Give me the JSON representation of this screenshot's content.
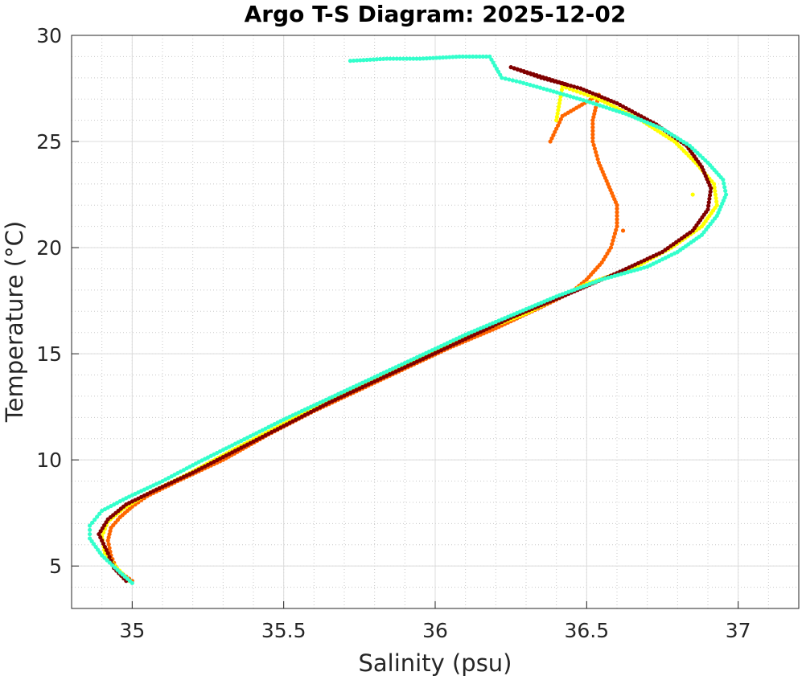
{
  "chart_data": {
    "type": "scatter",
    "title": "Argo T-S Diagram: 2025-12-02",
    "xlabel": "Salinity (psu)",
    "ylabel": "Temperature (°C)",
    "xlim": [
      34.8,
      37.2
    ],
    "ylim": [
      3,
      30
    ],
    "xticks": [
      35,
      35.5,
      36,
      36.5,
      37
    ],
    "xtick_labels": [
      "35",
      "35.5",
      "36",
      "36.5",
      "37"
    ],
    "yticks": [
      5,
      10,
      15,
      20,
      25,
      30
    ],
    "ytick_labels": [
      "5",
      "10",
      "15",
      "20",
      "25",
      "30"
    ],
    "grid": true,
    "minor_grid": true,
    "legend": "none",
    "series": [
      {
        "color": "#ff6600",
        "points": [
          [
            35.0,
            4.3
          ],
          [
            34.95,
            4.8
          ],
          [
            34.93,
            5.5
          ],
          [
            34.92,
            6.2
          ],
          [
            34.93,
            6.8
          ],
          [
            34.96,
            7.3
          ],
          [
            35.0,
            7.8
          ],
          [
            35.05,
            8.3
          ],
          [
            35.15,
            9.0
          ],
          [
            35.3,
            10.0
          ],
          [
            35.45,
            11.2
          ],
          [
            35.6,
            12.3
          ],
          [
            35.75,
            13.3
          ],
          [
            35.9,
            14.3
          ],
          [
            36.05,
            15.3
          ],
          [
            36.2,
            16.2
          ],
          [
            36.35,
            17.2
          ],
          [
            36.45,
            17.9
          ],
          [
            36.5,
            18.5
          ],
          [
            36.55,
            19.3
          ],
          [
            36.58,
            20.0
          ],
          [
            36.6,
            21.0
          ],
          [
            36.6,
            22.0
          ],
          [
            36.57,
            23.0
          ],
          [
            36.54,
            24.0
          ],
          [
            36.52,
            25.0
          ],
          [
            36.52,
            26.0
          ],
          [
            36.54,
            27.2
          ],
          [
            36.42,
            26.2
          ],
          [
            36.38,
            25.0
          ],
          [
            36.62,
            20.8
          ]
        ]
      },
      {
        "color": "#ffff00",
        "points": [
          [
            34.99,
            4.3
          ],
          [
            34.95,
            4.9
          ],
          [
            34.91,
            5.6
          ],
          [
            34.9,
            6.4
          ],
          [
            34.92,
            7.1
          ],
          [
            34.97,
            7.7
          ],
          [
            35.05,
            8.4
          ],
          [
            35.18,
            9.3
          ],
          [
            35.35,
            10.6
          ],
          [
            35.5,
            11.7
          ],
          [
            35.65,
            12.8
          ],
          [
            35.8,
            13.8
          ],
          [
            35.95,
            14.8
          ],
          [
            36.1,
            15.8
          ],
          [
            36.3,
            16.9
          ],
          [
            36.5,
            18.3
          ],
          [
            36.65,
            19.0
          ],
          [
            36.78,
            20.0
          ],
          [
            36.88,
            21.0
          ],
          [
            36.93,
            22.0
          ],
          [
            36.92,
            23.0
          ],
          [
            36.86,
            24.0
          ],
          [
            36.79,
            25.0
          ],
          [
            36.68,
            26.0
          ],
          [
            36.54,
            27.0
          ],
          [
            36.48,
            27.3
          ],
          [
            36.42,
            27.6
          ],
          [
            36.4,
            26.0
          ],
          [
            36.85,
            22.5
          ]
        ]
      },
      {
        "color": "#800000",
        "points": [
          [
            34.98,
            4.3
          ],
          [
            34.94,
            4.9
          ],
          [
            34.92,
            5.6
          ],
          [
            34.89,
            6.5
          ],
          [
            34.92,
            7.2
          ],
          [
            34.98,
            7.9
          ],
          [
            35.08,
            8.6
          ],
          [
            35.2,
            9.4
          ],
          [
            35.35,
            10.5
          ],
          [
            35.5,
            11.6
          ],
          [
            35.65,
            12.7
          ],
          [
            35.8,
            13.7
          ],
          [
            35.95,
            14.7
          ],
          [
            36.1,
            15.7
          ],
          [
            36.25,
            16.7
          ],
          [
            36.42,
            17.7
          ],
          [
            36.6,
            18.8
          ],
          [
            36.75,
            19.8
          ],
          [
            36.85,
            20.8
          ],
          [
            36.9,
            21.8
          ],
          [
            36.91,
            22.8
          ],
          [
            36.88,
            23.8
          ],
          [
            36.83,
            24.8
          ],
          [
            36.73,
            25.8
          ],
          [
            36.6,
            26.8
          ],
          [
            36.48,
            27.5
          ],
          [
            36.35,
            28.0
          ],
          [
            36.25,
            28.5
          ],
          [
            36.43,
            27.7
          ]
        ]
      },
      {
        "color": "#33ffcc",
        "points": [
          [
            35.0,
            4.2
          ],
          [
            34.96,
            4.7
          ],
          [
            34.9,
            5.5
          ],
          [
            34.86,
            6.3
          ],
          [
            34.86,
            6.9
          ],
          [
            34.9,
            7.6
          ],
          [
            34.98,
            8.2
          ],
          [
            35.1,
            9.0
          ],
          [
            35.22,
            9.9
          ],
          [
            35.36,
            10.9
          ],
          [
            35.5,
            11.9
          ],
          [
            35.65,
            12.9
          ],
          [
            35.8,
            13.9
          ],
          [
            35.95,
            14.9
          ],
          [
            36.1,
            15.9
          ],
          [
            36.25,
            16.8
          ],
          [
            36.4,
            17.7
          ],
          [
            36.55,
            18.5
          ],
          [
            36.7,
            19.1
          ],
          [
            36.8,
            19.8
          ],
          [
            36.88,
            20.6
          ],
          [
            36.93,
            21.5
          ],
          [
            36.96,
            22.5
          ],
          [
            36.95,
            23.2
          ],
          [
            36.9,
            24.0
          ],
          [
            36.84,
            24.8
          ],
          [
            36.75,
            25.6
          ],
          [
            36.63,
            26.3
          ],
          [
            36.5,
            26.9
          ],
          [
            36.38,
            27.4
          ],
          [
            36.28,
            27.8
          ],
          [
            36.22,
            28.0
          ],
          [
            36.18,
            29.0
          ],
          [
            36.08,
            29.0
          ],
          [
            35.95,
            28.9
          ],
          [
            35.84,
            28.9
          ],
          [
            35.72,
            28.8
          ]
        ]
      }
    ]
  }
}
